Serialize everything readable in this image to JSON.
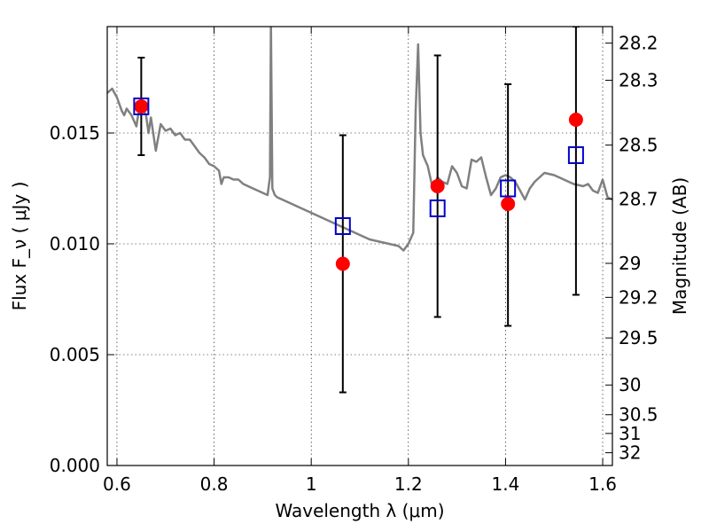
{
  "chart_data": {
    "type": "scatter",
    "xlabel": "Wavelength  λ (μm)",
    "ylabel": "Flux  F_ν  ( μJy )",
    "ylabel_right": "Magnitude (AB)",
    "xlim": [
      0.58,
      1.62
    ],
    "ylim": [
      0.0,
      0.0198
    ],
    "grid": true,
    "x_ticks": [
      0.6,
      0.8,
      1.0,
      1.2,
      1.4,
      1.6
    ],
    "x_tick_labels": [
      "0.6",
      "0.8",
      "1",
      "1.2",
      "1.4",
      "1.6"
    ],
    "y_ticks": [
      0.0,
      0.005,
      0.01,
      0.015
    ],
    "y_tick_labels": [
      "0.000",
      "0.005",
      "0.010",
      "0.015"
    ],
    "mag_ticks": [
      28.2,
      28.3,
      28.5,
      28.7,
      29,
      29.2,
      29.5,
      30,
      30.5,
      31,
      32
    ],
    "mag_tick_labels": [
      "28.2",
      "28.3",
      "28.5",
      "28.7",
      "29",
      "29.2",
      "29.5",
      "30",
      "30.5",
      "31",
      "32"
    ],
    "colors": {
      "spectrum": "#808080",
      "observed": "#ff0000",
      "model": "#0000cc",
      "error_bar": "#000000",
      "grid": "#000000"
    },
    "spectrum": {
      "x": [
        0.58,
        0.59,
        0.6,
        0.61,
        0.615,
        0.62,
        0.63,
        0.64,
        0.645,
        0.65,
        0.66,
        0.665,
        0.67,
        0.68,
        0.69,
        0.7,
        0.71,
        0.72,
        0.73,
        0.74,
        0.75,
        0.76,
        0.77,
        0.78,
        0.79,
        0.8,
        0.81,
        0.815,
        0.82,
        0.83,
        0.84,
        0.85,
        0.86,
        0.87,
        0.88,
        0.89,
        0.9,
        0.91,
        0.915,
        0.917,
        0.92,
        0.925,
        0.93,
        0.94,
        0.95,
        0.96,
        0.98,
        1.0,
        1.02,
        1.04,
        1.06,
        1.08,
        1.1,
        1.12,
        1.14,
        1.16,
        1.18,
        1.19,
        1.2,
        1.21,
        1.215,
        1.22,
        1.225,
        1.23,
        1.24,
        1.25,
        1.26,
        1.27,
        1.28,
        1.29,
        1.3,
        1.31,
        1.32,
        1.33,
        1.34,
        1.35,
        1.36,
        1.37,
        1.38,
        1.39,
        1.4,
        1.41,
        1.42,
        1.43,
        1.44,
        1.45,
        1.46,
        1.48,
        1.5,
        1.52,
        1.54,
        1.56,
        1.57,
        1.58,
        1.59,
        1.6,
        1.61,
        1.62
      ],
      "y": [
        0.0168,
        0.017,
        0.0166,
        0.016,
        0.0158,
        0.0161,
        0.0158,
        0.0153,
        0.016,
        0.0162,
        0.0158,
        0.015,
        0.0157,
        0.0142,
        0.0154,
        0.0151,
        0.0152,
        0.0149,
        0.015,
        0.0147,
        0.0147,
        0.0144,
        0.0141,
        0.0139,
        0.0136,
        0.0135,
        0.0133,
        0.0127,
        0.013,
        0.013,
        0.0129,
        0.0129,
        0.0127,
        0.0126,
        0.0125,
        0.0124,
        0.0123,
        0.0122,
        0.013,
        0.02,
        0.0125,
        0.0122,
        0.0121,
        0.012,
        0.0119,
        0.0118,
        0.0116,
        0.0114,
        0.0112,
        0.011,
        0.0108,
        0.0106,
        0.0104,
        0.0102,
        0.0101,
        0.01,
        0.0099,
        0.0097,
        0.01,
        0.0105,
        0.016,
        0.019,
        0.015,
        0.014,
        0.0135,
        0.0125,
        0.013,
        0.0128,
        0.0127,
        0.0135,
        0.0132,
        0.0126,
        0.0125,
        0.0138,
        0.0137,
        0.0139,
        0.013,
        0.0122,
        0.0125,
        0.013,
        0.0131,
        0.013,
        0.0128,
        0.0124,
        0.012,
        0.0125,
        0.0128,
        0.0132,
        0.0131,
        0.0129,
        0.0127,
        0.0126,
        0.0127,
        0.0124,
        0.0123,
        0.0129,
        0.0121,
        0.012
      ]
    },
    "observed": {
      "x": [
        0.65,
        1.065,
        1.26,
        1.405,
        1.545
      ],
      "y": [
        0.0162,
        0.0091,
        0.0126,
        0.0118,
        0.0156
      ],
      "err_low": [
        0.014,
        0.0033,
        0.0067,
        0.0063,
        0.0077
      ],
      "err_high": [
        0.0184,
        0.0149,
        0.0185,
        0.0172,
        0.0198
      ]
    },
    "model": {
      "x": [
        0.65,
        1.065,
        1.26,
        1.405,
        1.545
      ],
      "y": [
        0.0162,
        0.0108,
        0.0116,
        0.0125,
        0.014
      ]
    }
  }
}
